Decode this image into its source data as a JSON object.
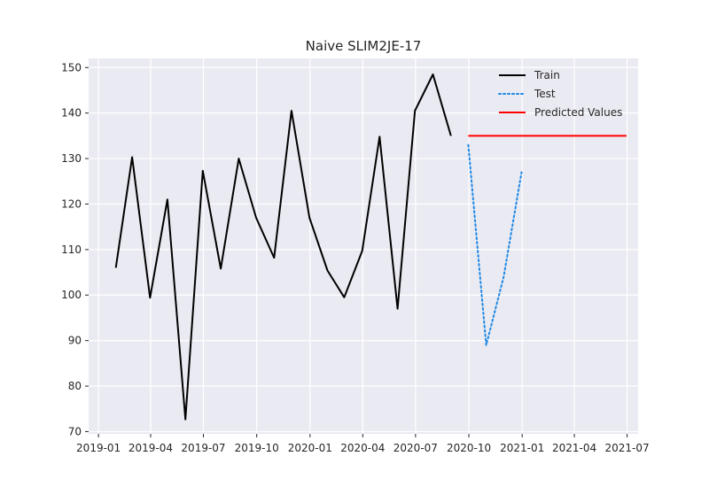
{
  "chart_data": {
    "type": "line",
    "title": "Naive SLIM2JE-17",
    "xlabel": "",
    "ylabel": "",
    "x_axis": "date",
    "xlim": [
      "2018-12-15",
      "2021-07-20"
    ],
    "ylim": [
      69.5,
      152
    ],
    "grid": true,
    "legend_position": "top-right",
    "x_ticks": [
      "2019-01",
      "2019-04",
      "2019-07",
      "2019-10",
      "2020-01",
      "2020-04",
      "2020-07",
      "2020-10",
      "2021-01",
      "2021-04",
      "2021-07"
    ],
    "y_ticks": [
      70,
      80,
      90,
      100,
      110,
      120,
      130,
      140,
      150
    ],
    "series": [
      {
        "name": "Train",
        "color": "#000000",
        "style": "solid",
        "points": [
          [
            "2019-01-31",
            106
          ],
          [
            "2019-02-28",
            130.3
          ],
          [
            "2019-03-31",
            99.4
          ],
          [
            "2019-04-30",
            121
          ],
          [
            "2019-05-31",
            72.7
          ],
          [
            "2019-06-30",
            127.3
          ],
          [
            "2019-07-31",
            105.8
          ],
          [
            "2019-08-31",
            130
          ],
          [
            "2019-09-30",
            117
          ],
          [
            "2019-10-31",
            108.2
          ],
          [
            "2019-11-30",
            140.5
          ],
          [
            "2019-12-31",
            117
          ],
          [
            "2020-01-31",
            105.4
          ],
          [
            "2020-02-29",
            99.5
          ],
          [
            "2020-03-31",
            109.7
          ],
          [
            "2020-04-30",
            134.8
          ],
          [
            "2020-05-31",
            97
          ],
          [
            "2020-06-30",
            140.5
          ],
          [
            "2020-07-31",
            148.5
          ],
          [
            "2020-08-31",
            135
          ]
        ]
      },
      {
        "name": "Test",
        "color": "#1e88e5",
        "style": "dotted",
        "points": [
          [
            "2020-09-30",
            133
          ],
          [
            "2020-10-31",
            89
          ],
          [
            "2020-11-30",
            104
          ],
          [
            "2020-12-31",
            127
          ]
        ]
      },
      {
        "name": "Predicted Values",
        "color": "#ff0000",
        "style": "solid",
        "points": [
          [
            "2020-09-30",
            135
          ],
          [
            "2021-06-30",
            135
          ]
        ]
      }
    ]
  }
}
